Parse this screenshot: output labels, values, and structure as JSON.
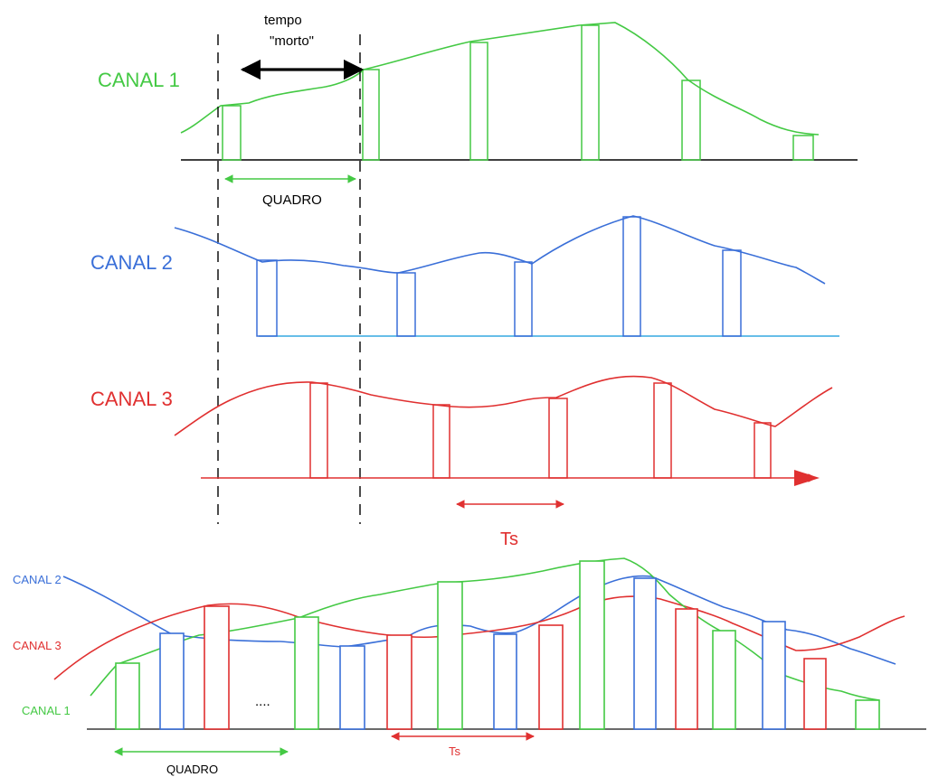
{
  "colors": {
    "ch1": "#44c944",
    "ch2": "#3a6fd8",
    "ch3": "#e03030",
    "ink": "#000000",
    "axis2": "#35a8e0"
  },
  "top": {
    "labels": {
      "ch1": "CANAL 1",
      "ch2": "CANAL 2",
      "ch3": "CANAL 3",
      "dead_time_line1": "tempo",
      "dead_time_line2": "\"morto\"",
      "frame": "QUADRO",
      "period": "Ts"
    }
  },
  "bottom": {
    "labels": {
      "ch2": "CANAL 2",
      "ch3": "CANAL 3",
      "ch1": "CANAL 1",
      "ellipsis": "....",
      "frame": "QUADRO",
      "period": "Ts"
    }
  }
}
